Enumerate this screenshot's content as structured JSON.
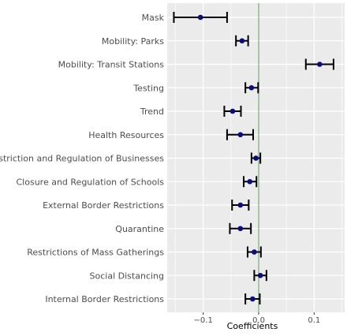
{
  "chart_data": {
    "type": "scatter",
    "subtype": "coefficient-plot-with-error-bars",
    "title": "",
    "xlabel": "Coefficients",
    "ylabel": "",
    "xlim": [
      -0.165,
      0.155
    ],
    "xticks": [
      -0.1,
      0.0,
      0.1
    ],
    "xtick_labels": [
      "−0.1",
      "0.0",
      "0.1"
    ],
    "grid": true,
    "reference_line": {
      "x": 0.0,
      "color": "#7fb27f"
    },
    "colors": {
      "panel_background": "#ebebeb",
      "grid": "#ffffff",
      "point": "#0c0c7a",
      "errorbar": "#000000",
      "text": "#4d4d4d"
    },
    "series": [
      {
        "values": [
          {
            "label": "Mask",
            "coef": -0.105,
            "lo": -0.153,
            "hi": -0.057
          },
          {
            "label": "Mobility: Parks",
            "coef": -0.03,
            "lo": -0.041,
            "hi": -0.019
          },
          {
            "label": "Mobility: Transit Stations",
            "coef": 0.11,
            "lo": 0.085,
            "hi": 0.135
          },
          {
            "label": "Testing",
            "coef": -0.013,
            "lo": -0.024,
            "hi": -0.001
          },
          {
            "label": "Trend",
            "coef": -0.047,
            "lo": -0.062,
            "hi": -0.032
          },
          {
            "label": "Health Resources",
            "coef": -0.033,
            "lo": -0.057,
            "hi": -0.01
          },
          {
            "label": "Restriction and Regulation of Businesses",
            "coef": -0.005,
            "lo": -0.013,
            "hi": 0.003
          },
          {
            "label": "Closure and Regulation of Schools",
            "coef": -0.016,
            "lo": -0.027,
            "hi": -0.004
          },
          {
            "label": "External Border Restrictions",
            "coef": -0.033,
            "lo": -0.048,
            "hi": -0.018
          },
          {
            "label": "Quarantine",
            "coef": -0.033,
            "lo": -0.052,
            "hi": -0.014
          },
          {
            "label": "Restrictions of Mass Gatherings",
            "coef": -0.008,
            "lo": -0.02,
            "hi": 0.004
          },
          {
            "label": "Social Distancing",
            "coef": 0.003,
            "lo": -0.008,
            "hi": 0.014
          },
          {
            "label": "Internal Border Restrictions",
            "coef": -0.011,
            "lo": -0.024,
            "hi": 0.002
          }
        ]
      }
    ]
  }
}
